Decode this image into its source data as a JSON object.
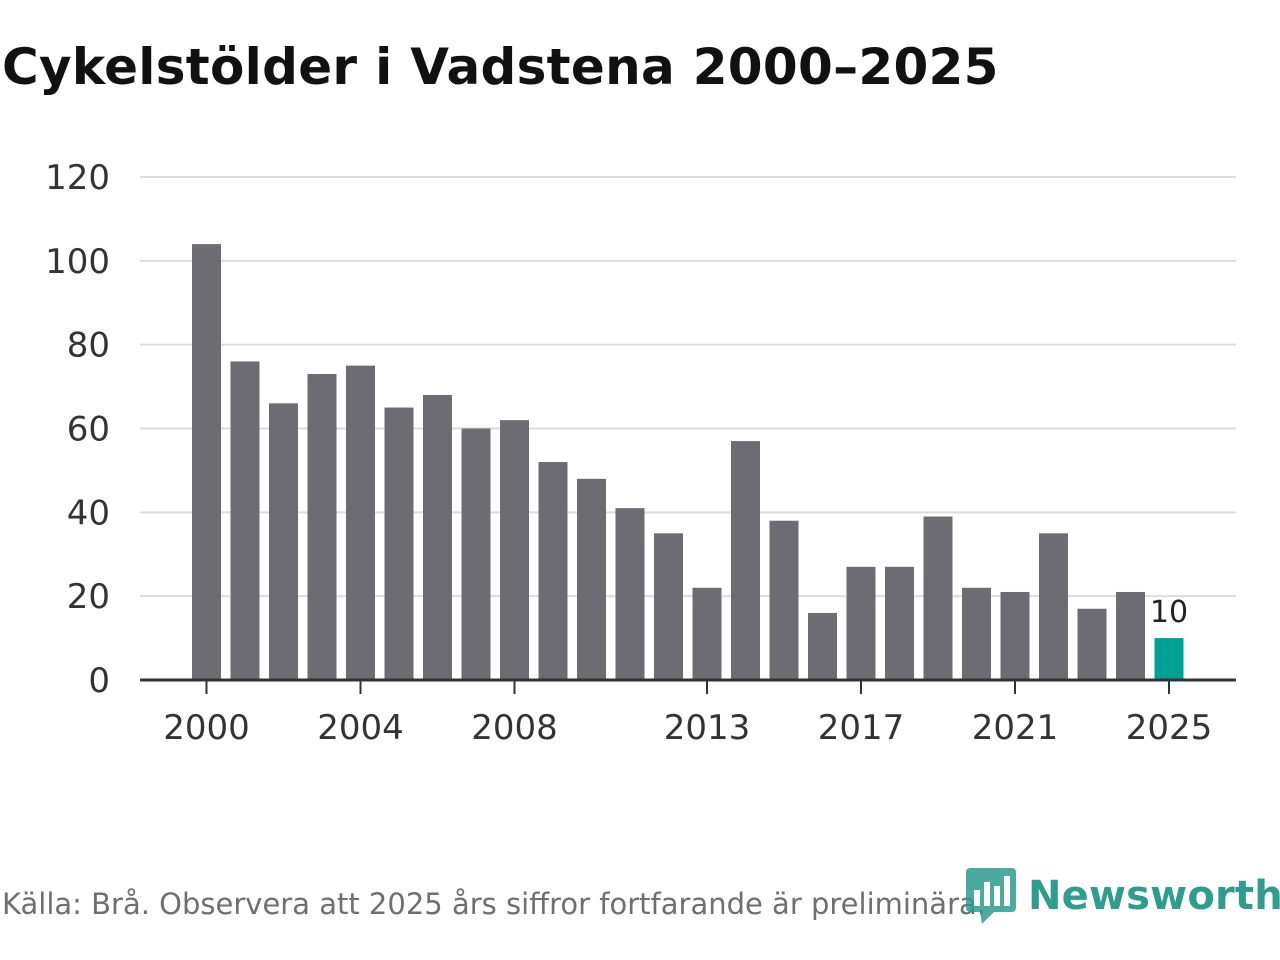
{
  "title": "Cykelstölder i Vadstena 2000–2025",
  "source": "Källa: Brå. Observera att 2025 års siffror fortfarande är preliminära.",
  "brand": {
    "name": "Newsworthy",
    "icon": "newsworthy-logo-icon"
  },
  "colors": {
    "bar": "#6d6c72",
    "highlight": "#00a096",
    "grid": "#dcdcdc",
    "axis": "#333333"
  },
  "chart_data": {
    "type": "bar",
    "title": "Cykelstölder i Vadstena 2000–2025",
    "xlabel": "",
    "ylabel": "",
    "ylim": [
      0,
      120
    ],
    "y_ticks": [
      0,
      20,
      40,
      60,
      80,
      100,
      120
    ],
    "x_tick_labels": [
      "2000",
      "2004",
      "2008",
      "2013",
      "2017",
      "2021",
      "2025"
    ],
    "grid": true,
    "categories": [
      "2000",
      "2001",
      "2002",
      "2003",
      "2004",
      "2005",
      "2006",
      "2007",
      "2008",
      "2009",
      "2010",
      "2011",
      "2012",
      "2013",
      "2014",
      "2015",
      "2016",
      "2017",
      "2018",
      "2019",
      "2020",
      "2021",
      "2022",
      "2023",
      "2024",
      "2025"
    ],
    "values": [
      104,
      76,
      66,
      73,
      75,
      65,
      68,
      60,
      62,
      52,
      48,
      41,
      35,
      22,
      57,
      38,
      16,
      27,
      27,
      39,
      22,
      21,
      35,
      17,
      21,
      10
    ],
    "highlight": {
      "category": "2025",
      "label": "10"
    }
  }
}
